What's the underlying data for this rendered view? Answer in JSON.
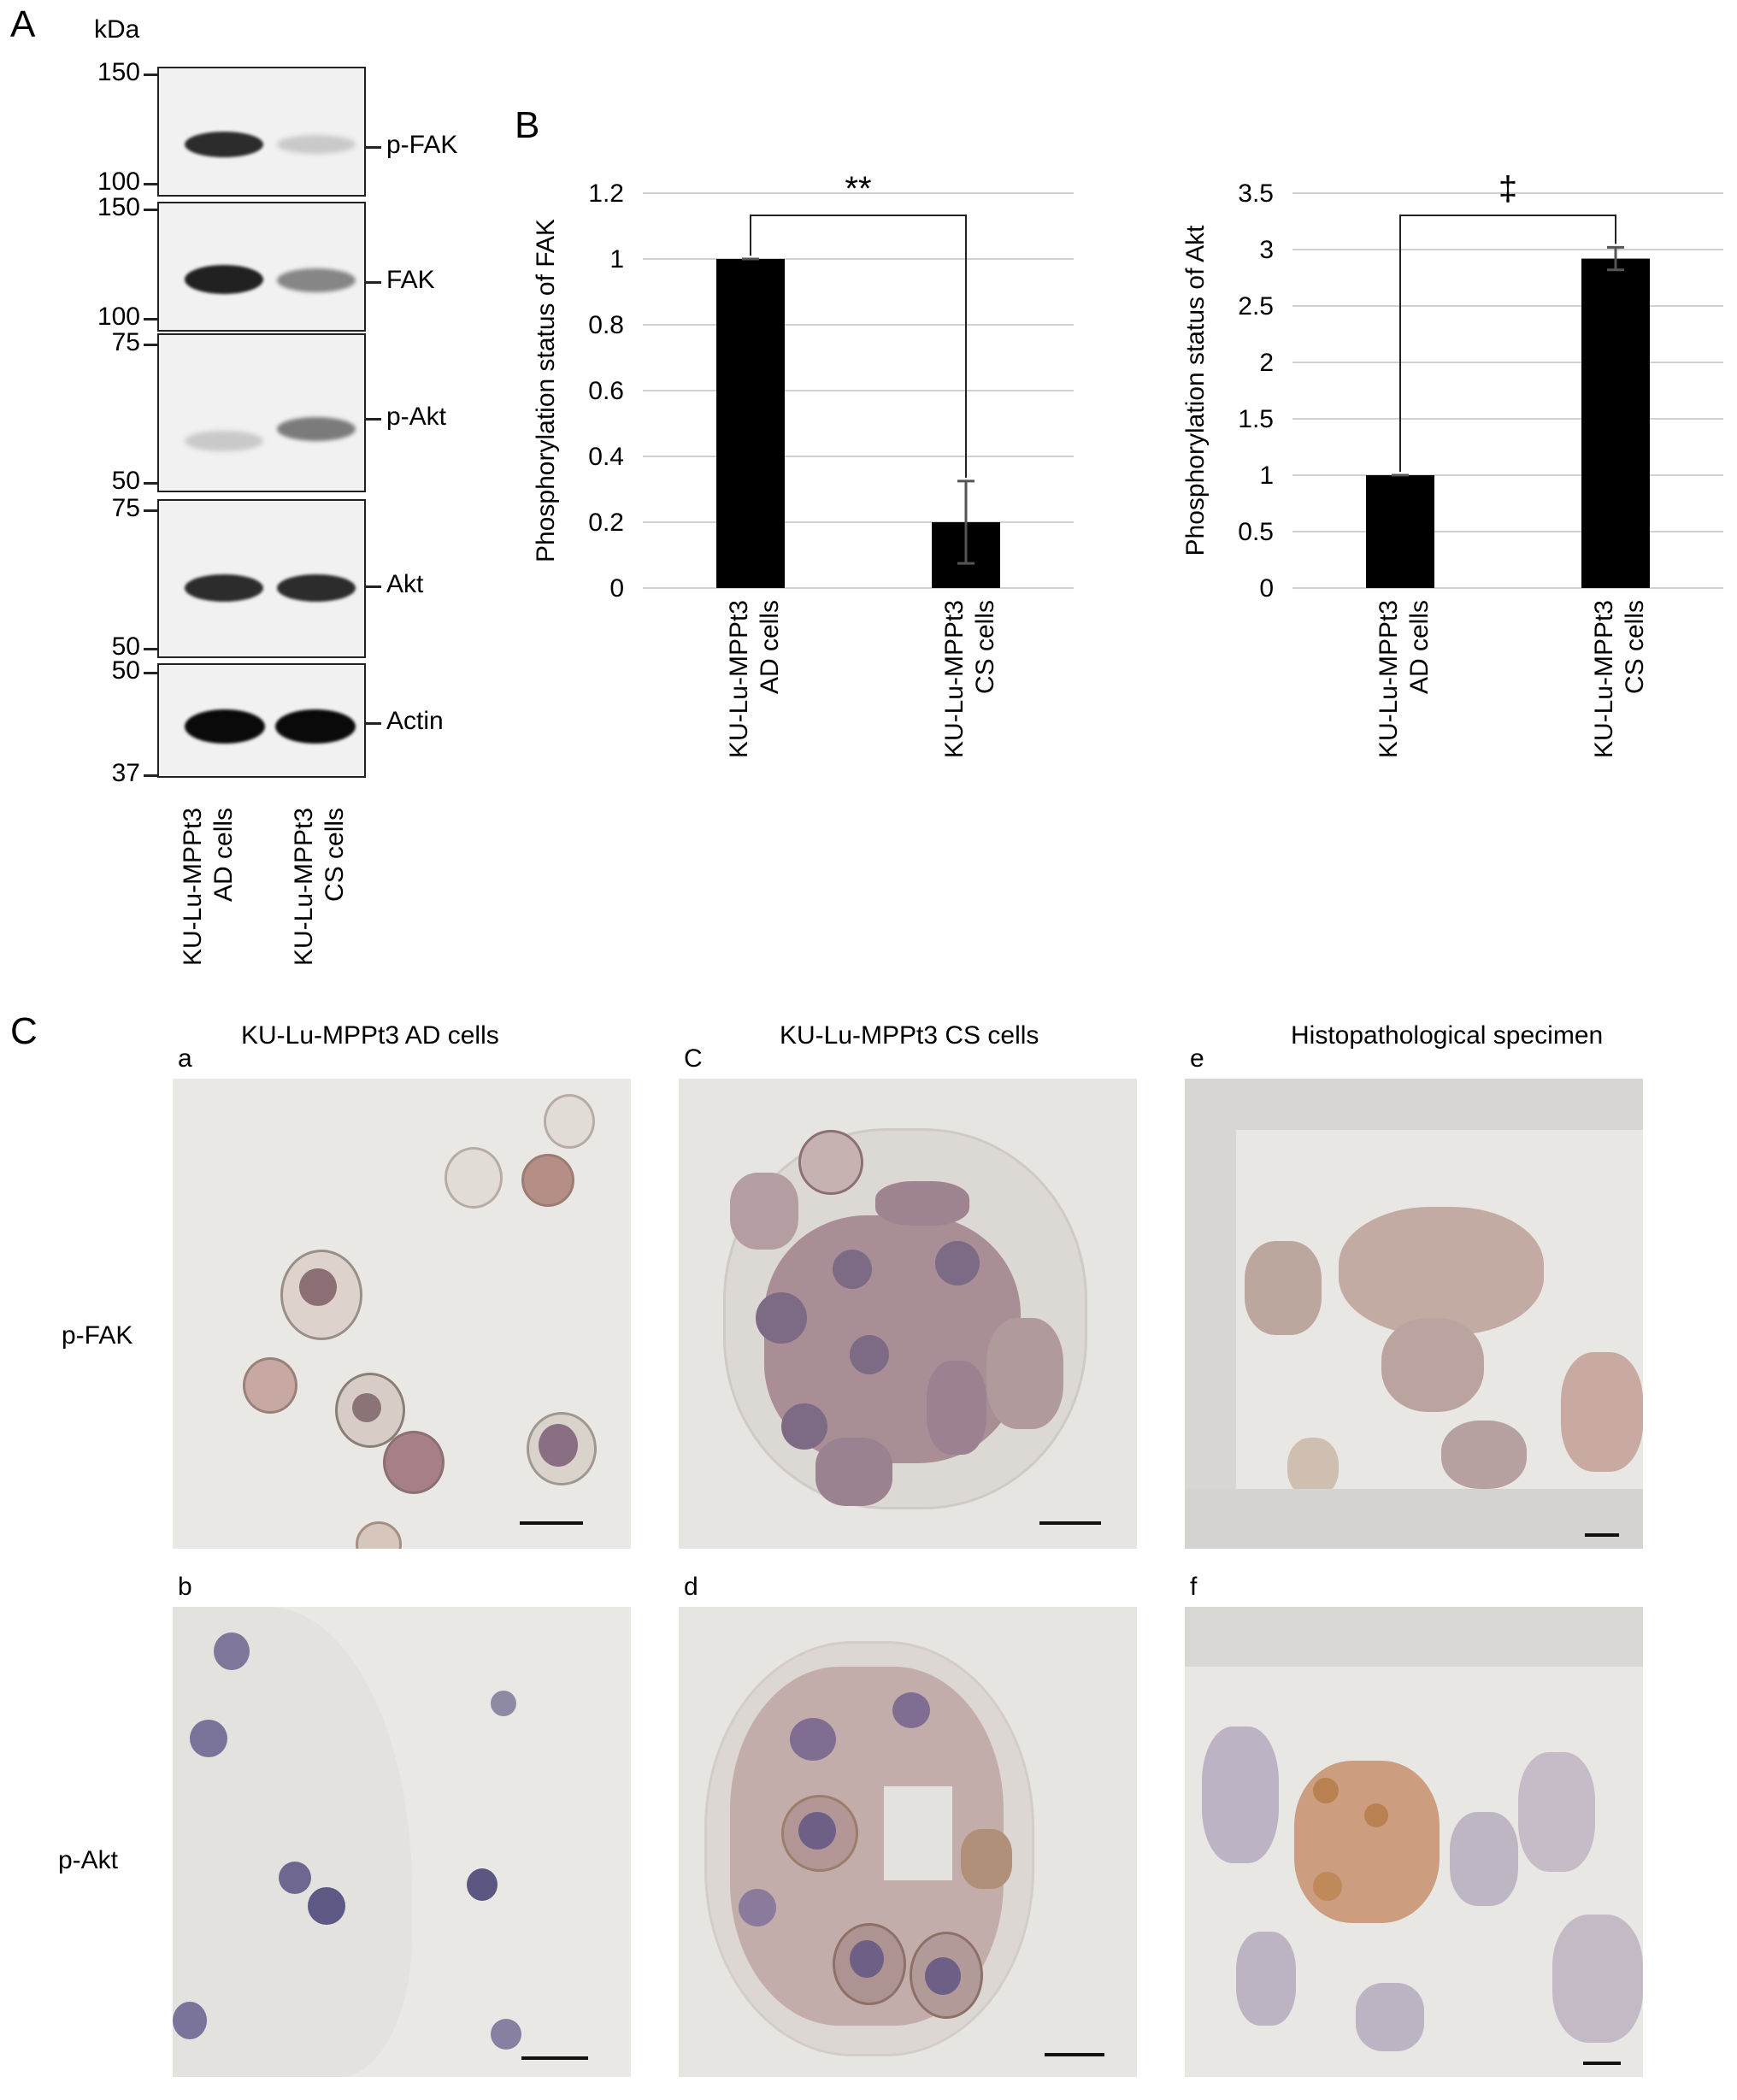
{
  "panel_A": {
    "letter": "A",
    "kda_label": "kDa",
    "blots": [
      {
        "label": "p-FAK",
        "ticks": [
          "150",
          "100"
        ]
      },
      {
        "label": "FAK",
        "ticks": [
          "150",
          "100"
        ]
      },
      {
        "label": "p-Akt",
        "ticks": [
          "75",
          "50"
        ]
      },
      {
        "label": "Akt",
        "ticks": [
          "75",
          "50"
        ]
      },
      {
        "label": "Actin",
        "ticks": [
          "50",
          "37"
        ]
      }
    ],
    "lanes": [
      {
        "line1": "KU-Lu-MPPt3",
        "line2": "AD cells"
      },
      {
        "line1": "KU-Lu-MPPt3",
        "line2": "CS cells"
      }
    ],
    "band_intensity": {
      "p-FAK": [
        0.85,
        0.15
      ],
      "FAK": [
        0.9,
        0.45
      ],
      "p-Akt": [
        0.15,
        0.5
      ],
      "Akt": [
        0.85,
        0.85
      ],
      "Actin": [
        1.0,
        1.0
      ]
    }
  },
  "panel_B": {
    "letter": "B",
    "colors": {
      "bar": "#000000",
      "grid": "#d0d0d0",
      "bracket": "#222222"
    }
  },
  "chart_data": [
    {
      "type": "bar",
      "categories": [
        "KU-Lu-MPPt3 AD cells",
        "KU-Lu-MPPt3 CS cells"
      ],
      "cat_lines": [
        [
          "KU-Lu-MPPt3",
          "AD cells"
        ],
        [
          "KU-Lu-MPPt3",
          "CS cells"
        ]
      ],
      "values": [
        1.0,
        0.2
      ],
      "errors": [
        0.0,
        0.125
      ],
      "title": "",
      "xlabel": "",
      "ylabel": "Phosphorylation status of FAK",
      "ylim": [
        0,
        1.2
      ],
      "yticks": [
        0,
        0.2,
        0.4,
        0.6,
        0.8,
        1,
        1.2
      ],
      "ytick_labels": [
        "0",
        "0.2",
        "0.4",
        "0.6",
        "0.8",
        "1",
        "1.2"
      ],
      "significance": "**",
      "grid": true
    },
    {
      "type": "bar",
      "categories": [
        "KU-Lu-MPPt3 AD cells",
        "KU-Lu-MPPt3 CS cells"
      ],
      "cat_lines": [
        [
          "KU-Lu-MPPt3",
          "AD cells"
        ],
        [
          "KU-Lu-MPPt3",
          "CS cells"
        ]
      ],
      "values": [
        1.0,
        2.92
      ],
      "errors": [
        0.0,
        0.1
      ],
      "title": "",
      "xlabel": "",
      "ylabel": "Phosphorylation status of Akt",
      "ylim": [
        0,
        3.5
      ],
      "yticks": [
        0,
        0.5,
        1,
        1.5,
        2,
        2.5,
        3,
        3.5
      ],
      "ytick_labels": [
        "0",
        "0.5",
        "1",
        "1.5",
        "2",
        "2.5",
        "3",
        "3.5"
      ],
      "significance": "‡",
      "grid": true
    }
  ],
  "panel_C": {
    "letter": "C",
    "columns": [
      {
        "title": "KU-Lu-MPPt3 AD cells"
      },
      {
        "title": "KU-Lu-MPPt3 CS cells"
      },
      {
        "title": "Histopathological specimen"
      }
    ],
    "rows": [
      {
        "label": "p-FAK"
      },
      {
        "label": "p-Akt"
      }
    ],
    "subpanels": [
      "a",
      "C",
      "e",
      "b",
      "d",
      "f"
    ]
  }
}
